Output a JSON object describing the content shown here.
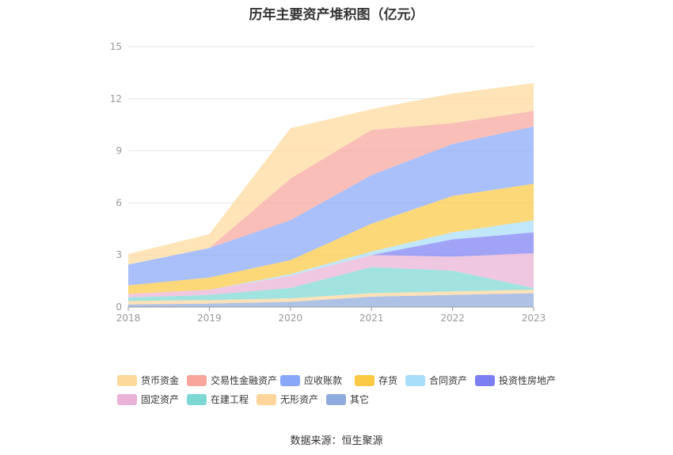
{
  "chart_data": {
    "type": "area",
    "stacked": true,
    "title": "历年主要资产堆积图（亿元）",
    "categories": [
      "2018",
      "2019",
      "2020",
      "2021",
      "2022",
      "2023"
    ],
    "ylim": [
      0,
      15
    ],
    "yticks": [
      0,
      3,
      6,
      9,
      12,
      15
    ],
    "grid": true,
    "legend_position": "bottom",
    "series": [
      {
        "name": "其它",
        "color": "#8faadc",
        "values": [
          0.15,
          0.2,
          0.3,
          0.6,
          0.7,
          0.8
        ]
      },
      {
        "name": "无形资产",
        "color": "#fdd59a",
        "values": [
          0.2,
          0.2,
          0.2,
          0.2,
          0.2,
          0.2
        ]
      },
      {
        "name": "在建工程",
        "color": "#7dd8d3",
        "values": [
          0.2,
          0.3,
          0.6,
          1.5,
          1.2,
          0.1
        ]
      },
      {
        "name": "固定资产",
        "color": "#eab2d6",
        "values": [
          0.2,
          0.3,
          0.7,
          0.7,
          0.8,
          2.0
        ]
      },
      {
        "name": "投资性房地产",
        "color": "#7b7ff2",
        "values": [
          0.0,
          0.0,
          0.0,
          0.0,
          1.0,
          1.2
        ]
      },
      {
        "name": "合同资产",
        "color": "#a8def8",
        "values": [
          0.0,
          0.0,
          0.1,
          0.2,
          0.4,
          0.7
        ]
      },
      {
        "name": "存货",
        "color": "#fcc944",
        "values": [
          0.5,
          0.7,
          0.8,
          1.6,
          2.1,
          2.1
        ]
      },
      {
        "name": "应收账款",
        "color": "#88a7f8",
        "values": [
          1.2,
          1.7,
          2.3,
          2.8,
          3.0,
          3.3
        ]
      },
      {
        "name": "交易性金融资产",
        "color": "#f8a59c",
        "values": [
          0.0,
          0.0,
          2.4,
          2.6,
          1.2,
          0.9
        ]
      },
      {
        "name": "货币资金",
        "color": "#fdd99b",
        "values": [
          0.6,
          0.8,
          2.9,
          1.2,
          1.7,
          1.6
        ]
      }
    ],
    "legend_order": [
      "货币资金",
      "交易性金融资产",
      "应收账款",
      "存货",
      "合同资产",
      "投资性房地产",
      "固定资产",
      "在建工程",
      "无形资产",
      "其它"
    ]
  },
  "source_text": "数据来源：恒生聚源"
}
